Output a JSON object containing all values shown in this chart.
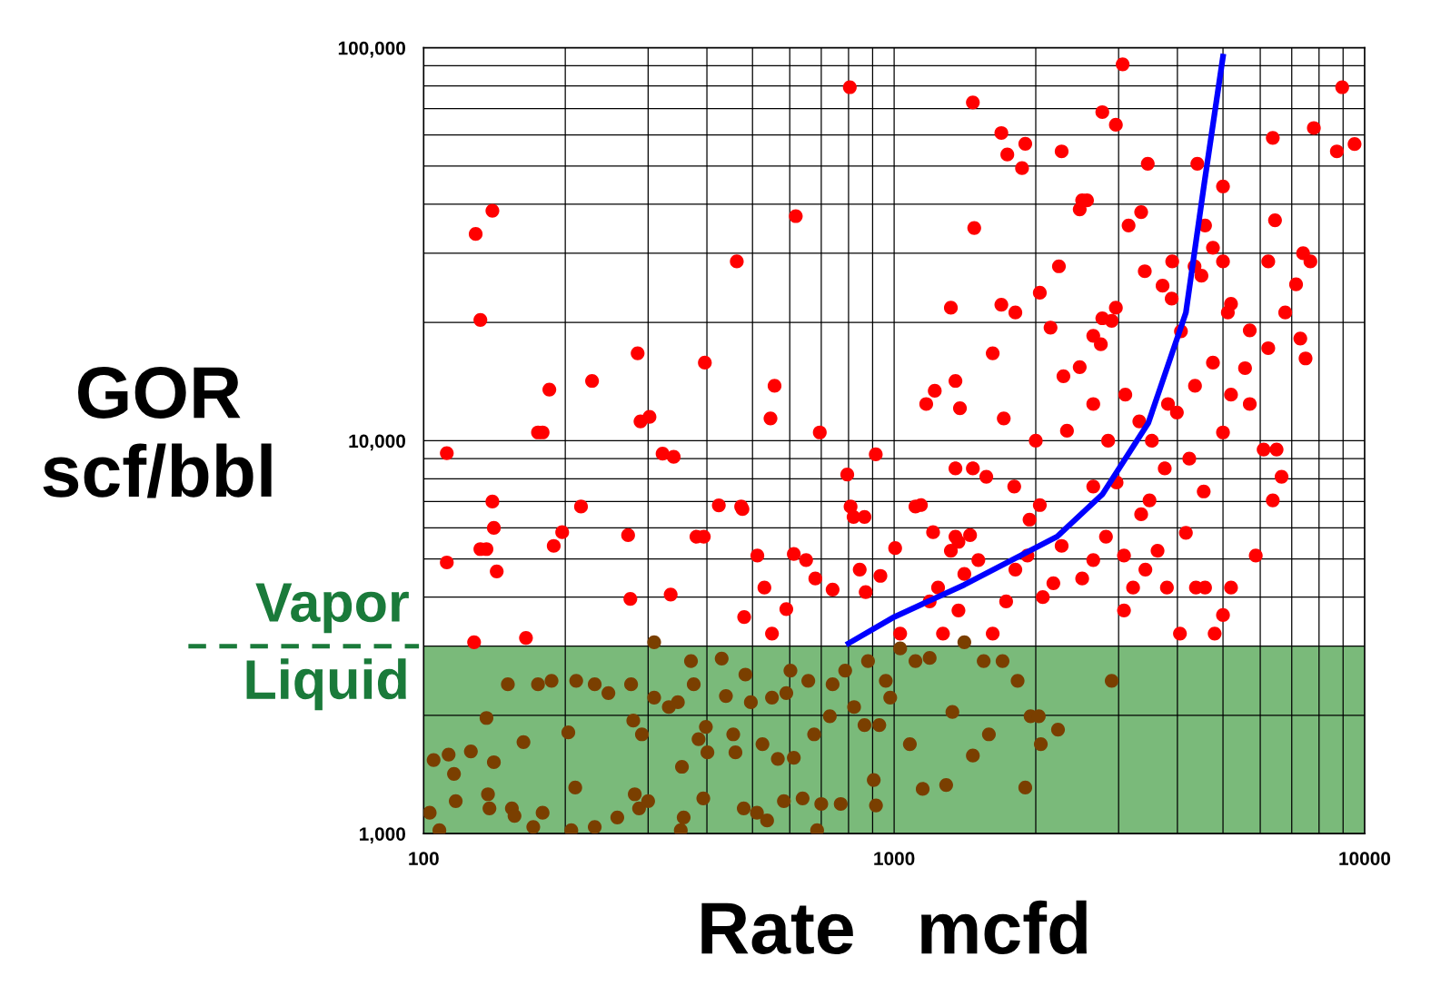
{
  "chart_data": {
    "type": "scatter",
    "xlabel": "Rate   mcfd",
    "ylabel": "GOR\nscf/bbl",
    "log": "xy",
    "xlim": [
      100,
      10000
    ],
    "ylim": [
      1000,
      100000
    ],
    "xticks": [
      100,
      1000,
      10000
    ],
    "yticks": [
      {
        "value": 1000,
        "label": "1,000"
      },
      {
        "value": 10000,
        "label": "10,000"
      },
      {
        "value": 100000,
        "label": "100,000"
      }
    ],
    "grid": true,
    "legend": false,
    "marker": "circle",
    "bands": [
      {
        "axis": "y",
        "from": 1000,
        "to": 3000,
        "color": "#7aba7a"
      }
    ],
    "annotations": [
      "Vapor",
      "Liquid"
    ],
    "series": [
      {
        "color": "#ff0000",
        "x": [
          112,
          112,
          129,
          132,
          140,
          128,
          132,
          136,
          140,
          141,
          143,
          165,
          175,
          179,
          185,
          189,
          197,
          216,
          228,
          272,
          275,
          285,
          289,
          302,
          322,
          340,
          335,
          380,
          394,
          396,
          424,
          476,
          480,
          473,
          463,
          512,
          530,
          550,
          546,
          557,
          590,
          612,
          650,
          680,
          618,
          695,
          740,
          795,
          808,
          820,
          845,
          865,
          805,
          914,
          1005,
          1110,
          1240,
          1320,
          1370,
          1450,
          1470,
          1570,
          1480,
          1470,
          1690,
          1740,
          1870,
          1900,
          1690,
          1810,
          1710,
          1800,
          1940,
          2040,
          2000,
          2040,
          2150,
          2240,
          2270,
          2290,
          2480,
          2510,
          2570,
          2770,
          2960,
          2750,
          2900,
          3060,
          3150,
          2970,
          3350,
          3410,
          3460,
          3720,
          3820,
          3900,
          4410,
          4580,
          5000,
          4500,
          4760,
          5000,
          5120,
          5200,
          4760,
          5000,
          5200,
          5570,
          5700,
          6240,
          6450,
          7150,
          7400,
          7670,
          6780,
          6240,
          7300,
          7490,
          5700,
          6100,
          6500,
          6660,
          6380,
          5870,
          5200,
          5000,
          4580,
          4800,
          6380,
          7800,
          8730,
          8960,
          9520,
          2510,
          2650,
          2820,
          3080,
          3350,
          3490,
          3630,
          3800,
          4050,
          3080,
          3220,
          3420,
          3100,
          3320,
          3530,
          3760,
          3990,
          4240,
          4360,
          4550,
          4170,
          4380,
          2480,
          2650,
          2850,
          2330,
          2270,
          2180,
          2070,
          1920,
          1810,
          1730,
          1620,
          1510,
          1410,
          1370,
          1270,
          1190,
          1140,
          1170,
          1220,
          1350,
          1380,
          1320,
          1350,
          1620,
          1350,
          1210,
          1030,
          935,
          870,
          2650,
          2650,
          2770,
          2960,
          3890,
          4070,
          4350
        ],
        "values": [
          9300,
          4900,
          33600,
          20300,
          38500,
          3070,
          5300,
          5300,
          7000,
          6000,
          4650,
          3150,
          10500,
          10500,
          13500,
          5400,
          5850,
          6800,
          14200,
          5750,
          3960,
          16700,
          11200,
          11500,
          9270,
          9100,
          4060,
          5700,
          5700,
          15800,
          6850,
          6700,
          3560,
          6800,
          28600,
          5100,
          4230,
          3230,
          11400,
          13800,
          3730,
          5150,
          4970,
          4460,
          37300,
          10500,
          4180,
          8200,
          6800,
          6400,
          4700,
          6400,
          79400,
          9230,
          5330,
          6800,
          4230,
          5250,
          5530,
          5750,
          8500,
          8100,
          34800,
          72600,
          60700,
          53500,
          49400,
          57000,
          22200,
          21200,
          11400,
          7650,
          6300,
          6860,
          10000,
          23800,
          19400,
          27800,
          54500,
          14600,
          38800,
          40900,
          40900,
          68600,
          63700,
          17600,
          20200,
          90800,
          35300,
          7830,
          38200,
          27000,
          50700,
          24800,
          12400,
          28600,
          50700,
          35300,
          44400,
          26300,
          31000,
          28600,
          21200,
          22300,
          15800,
          10500,
          13100,
          15300,
          19100,
          28600,
          36400,
          25000,
          30000,
          28600,
          21200,
          17200,
          18200,
          16200,
          12400,
          9500,
          9500,
          8100,
          7050,
          5100,
          4230,
          3600,
          4230,
          3230,
          59000,
          62500,
          54500,
          79400,
          56900,
          4460,
          4970,
          5700,
          5100,
          6500,
          7050,
          5250,
          4230,
          3230,
          3700,
          4230,
          4700,
          13100,
          11200,
          10000,
          8500,
          11800,
          9000,
          13800,
          7430,
          5830,
          4230,
          15400,
          12400,
          10000,
          10600,
          5400,
          4340,
          4000,
          5100,
          4700,
          3900,
          3230,
          4970,
          4580,
          3700,
          3230,
          3900,
          6860,
          12400,
          13400,
          14200,
          12100,
          21800,
          8500,
          16700,
          5700,
          5850,
          3230,
          4530,
          4120,
          7650,
          18500,
          20500,
          21800,
          23000,
          19000,
          27800
        ]
      },
      {
        "color": "#7a3f00",
        "x": [
          103,
          108,
          105,
          113,
          116,
          117,
          126,
          136,
          137,
          138,
          141,
          151,
          154,
          156,
          163,
          171,
          175,
          179,
          187,
          203,
          206,
          210,
          211,
          231,
          231,
          247,
          258,
          276,
          279,
          281,
          287,
          291,
          300,
          309,
          309,
          332,
          347,
          354,
          357,
          352,
          370,
          375,
          384,
          393,
          398,
          401,
          430,
          439,
          455,
          460,
          479,
          483,
          496,
          511,
          525,
          537,
          550,
          566,
          583,
          590,
          602,
          612,
          639,
          657,
          676,
          686,
          700,
          730,
          740,
          770,
          787,
          822,
          865,
          880,
          905,
          915,
          930,
          960,
          981,
          1030,
          1080,
          1110,
          1150,
          1190,
          1290,
          1330,
          1410,
          1470,
          1550,
          1590,
          1700,
          1830,
          1900,
          1950,
          2030,
          2050,
          2230,
          2900
        ],
        "values": [
          1130,
          1020,
          1540,
          1590,
          1420,
          1210,
          1620,
          1970,
          1260,
          1160,
          1520,
          2400,
          1160,
          1110,
          1710,
          1040,
          2400,
          1130,
          2450,
          1810,
          1020,
          1310,
          2450,
          1040,
          2400,
          2280,
          1100,
          2400,
          1940,
          1260,
          1160,
          1790,
          1210,
          2220,
          3070,
          2100,
          2160,
          1480,
          1100,
          1020,
          2750,
          2400,
          1740,
          1230,
          1870,
          1610,
          2790,
          2240,
          1790,
          1610,
          1160,
          2540,
          2160,
          1130,
          1690,
          1080,
          2220,
          1550,
          1210,
          2280,
          2600,
          1560,
          1230,
          2450,
          1790,
          1020,
          1190,
          1990,
          2400,
          1190,
          2600,
          2100,
          1890,
          2750,
          1370,
          1180,
          1890,
          2450,
          2220,
          2960,
          1690,
          2750,
          1300,
          2800,
          1330,
          2040,
          3070,
          1580,
          2750,
          1790,
          2750,
          2450,
          1310,
          1990,
          1990,
          1690,
          1840,
          2450
        ]
      },
      {
        "type": "line",
        "color": "#0000ff",
        "marker": "none",
        "line_style": "solid",
        "x": [
          800,
          1000,
          1410,
          2220,
          2770,
          3470,
          4170,
          4560,
          5000
        ],
        "values": [
          3050,
          3560,
          4300,
          5700,
          7300,
          11100,
          21200,
          45000,
          95000
        ]
      }
    ]
  }
}
